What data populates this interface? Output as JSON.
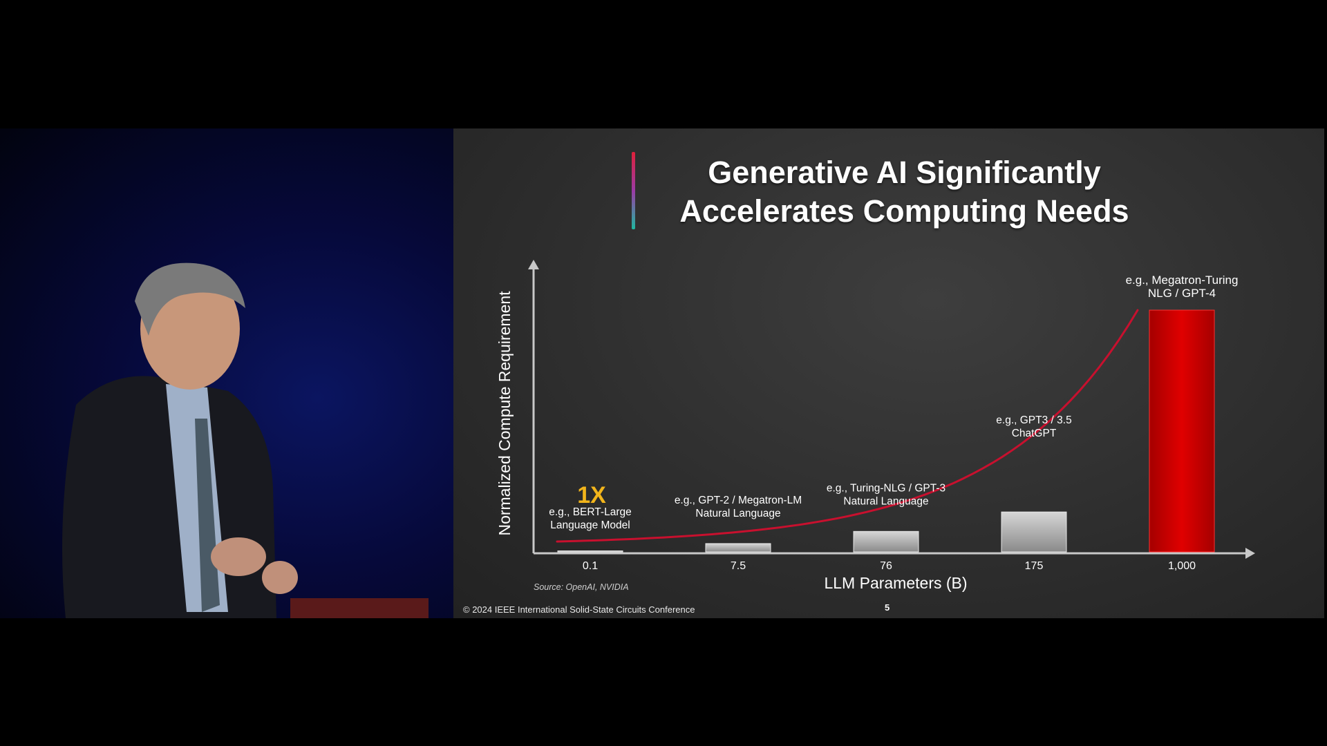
{
  "slide": {
    "title_line1": "Generative AI Significantly",
    "title_line2": "Accelerates Computing Needs",
    "footer": "© 2024 IEEE International Solid-State Circuits Conference",
    "page_number": "5",
    "source": "Source: OpenAI, NVIDIA"
  },
  "colors": {
    "bar_gray": "#bdbdbd",
    "bar_highlight": "#d40000",
    "curve": "#c8102e",
    "callout": "#f2b51b"
  },
  "chart_data": {
    "type": "bar",
    "xlabel": "LLM Parameters (B)",
    "ylabel": "Normalized Compute Requirement",
    "categories": [
      "0.1",
      "7.5",
      "76",
      "175",
      "1,000"
    ],
    "values": [
      1,
      4,
      9,
      17,
      100
    ],
    "highlight_index": 4,
    "callout": {
      "text": "1X",
      "category_index": 0
    },
    "annotations": [
      {
        "category_index": 0,
        "lines": [
          "e.g., BERT-Large",
          "Language Model"
        ]
      },
      {
        "category_index": 1,
        "lines": [
          "e.g., GPT-2 / Megatron-LM",
          "Natural Language"
        ]
      },
      {
        "category_index": 2,
        "lines": [
          "e.g., Turing-NLG / GPT-3",
          "Natural Language"
        ]
      },
      {
        "category_index": 3,
        "lines": [
          "e.g., GPT3 / 3.5",
          "ChatGPT"
        ]
      },
      {
        "category_index": 4,
        "lines": [
          "e.g., Megatron-Turing",
          "NLG / GPT-4"
        ]
      }
    ],
    "trend_curve": true,
    "grid": false
  }
}
